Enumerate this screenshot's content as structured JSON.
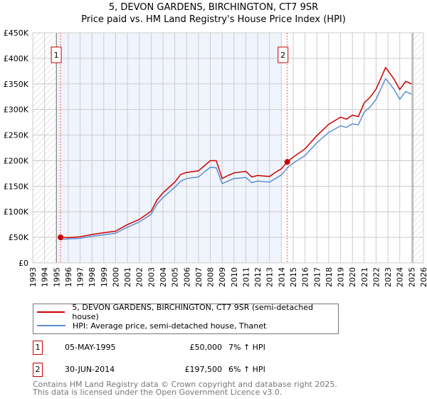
{
  "title": "5, DEVON GARDENS, BIRCHINGTON, CT7 9SR",
  "subtitle": "Price paid vs. HM Land Registry's House Price Index (HPI)",
  "chart_data": {
    "type": "line",
    "title": "5, DEVON GARDENS, BIRCHINGTON, CT7 9SR",
    "subtitle": "Price paid vs. HM Land Registry's House Price Index (HPI)",
    "xlim": [
      1993,
      2026
    ],
    "ylim": [
      0,
      450000
    ],
    "xticks": [
      "1993",
      "1994",
      "1995",
      "1996",
      "1997",
      "1998",
      "1999",
      "2000",
      "2001",
      "2002",
      "2003",
      "2004",
      "2005",
      "2006",
      "2007",
      "2008",
      "2009",
      "2010",
      "2011",
      "2012",
      "2013",
      "2014",
      "2015",
      "2016",
      "2017",
      "2018",
      "2019",
      "2020",
      "2021",
      "2022",
      "2023",
      "2024",
      "2025",
      "2026"
    ],
    "yticks": [
      {
        "v": 0,
        "label": "£0"
      },
      {
        "v": 50000,
        "label": "£50K"
      },
      {
        "v": 100000,
        "label": "£100K"
      },
      {
        "v": 150000,
        "label": "£150K"
      },
      {
        "v": 200000,
        "label": "£200K"
      },
      {
        "v": 250000,
        "label": "£250K"
      },
      {
        "v": 300000,
        "label": "£300K"
      },
      {
        "v": 350000,
        "label": "£350K"
      },
      {
        "v": 400000,
        "label": "£400K"
      },
      {
        "v": 450000,
        "label": "£450K"
      }
    ],
    "grid": true,
    "shaded_range": [
      1995.0,
      2014.0
    ],
    "hatched_before": 1995.0,
    "hatched_after": 2025.1,
    "series": [
      {
        "name": "5, DEVON GARDENS, BIRCHINGTON, CT7 9SR (semi-detached house)",
        "color": "#cc0000",
        "x": [
          1995.35,
          1996,
          1997,
          1998,
          1999,
          2000,
          2001,
          2002,
          2003,
          2003.5,
          2004,
          2005,
          2005.5,
          2006,
          2007,
          2007.5,
          2008,
          2008.5,
          2009,
          2009.5,
          2010,
          2011,
          2011.5,
          2012,
          2013,
          2013.5,
          2014,
          2014.5,
          2015,
          2016,
          2017,
          2018,
          2019,
          2019.5,
          2020,
          2020.5,
          2021,
          2021.5,
          2022,
          2022.5,
          2022.8,
          2023,
          2023.5,
          2024,
          2024.5,
          2025
        ],
        "y": [
          50000,
          49500,
          51000,
          55500,
          59000,
          62000,
          75000,
          85000,
          101000,
          123000,
          137000,
          158000,
          173000,
          177000,
          180000,
          190000,
          200000,
          200000,
          165000,
          171000,
          176000,
          179000,
          168000,
          171000,
          169000,
          177000,
          184000,
          197500,
          207000,
          223000,
          249000,
          271000,
          285000,
          281000,
          289000,
          286000,
          313000,
          324000,
          340000,
          366000,
          382000,
          376000,
          360000,
          339000,
          355000,
          350000
        ]
      },
      {
        "name": "HPI: Average price, semi-detached house, Thanet",
        "color": "#5b8fd4",
        "x": [
          1995.35,
          1996,
          1997,
          1998,
          1999,
          2000,
          2001,
          2002,
          2003,
          2003.5,
          2004,
          2005,
          2005.5,
          2006,
          2007,
          2007.5,
          2008,
          2008.5,
          2009,
          2009.5,
          2010,
          2011,
          2011.5,
          2012,
          2013,
          2013.5,
          2014,
          2014.5,
          2015,
          2016,
          2017,
          2018,
          2019,
          2019.5,
          2020,
          2020.5,
          2021,
          2021.5,
          2022,
          2022.5,
          2022.8,
          2023,
          2023.5,
          2024,
          2024.5,
          2025
        ],
        "y": [
          46000,
          47000,
          48000,
          52000,
          55000,
          58000,
          70000,
          80000,
          95000,
          115000,
          128000,
          148000,
          160000,
          165000,
          168000,
          178000,
          187000,
          186000,
          155000,
          160000,
          165000,
          167000,
          157000,
          160000,
          158000,
          165000,
          172000,
          186000,
          195000,
          210000,
          235000,
          255000,
          268000,
          265000,
          272000,
          270000,
          295000,
          305000,
          320000,
          345000,
          360000,
          355000,
          340000,
          320000,
          335000,
          330000
        ]
      }
    ],
    "sales": [
      {
        "label": "1",
        "x": 1995.35,
        "y": 50000
      },
      {
        "label": "2",
        "x": 2014.5,
        "y": 197500
      }
    ]
  },
  "legend": [
    "5, DEVON GARDENS, BIRCHINGTON, CT7 9SR (semi-detached house)",
    "HPI: Average price, semi-detached house, Thanet"
  ],
  "table": [
    {
      "num": "1",
      "date": "05-MAY-1995",
      "price": "£50,000",
      "hpi": "7% ↑ HPI"
    },
    {
      "num": "2",
      "date": "30-JUN-2014",
      "price": "£197,500",
      "hpi": "6% ↑ HPI"
    }
  ],
  "footer": [
    "Contains HM Land Registry data © Crown copyright and database right 2025.",
    "This data is licensed under the Open Government Licence v3.0."
  ]
}
